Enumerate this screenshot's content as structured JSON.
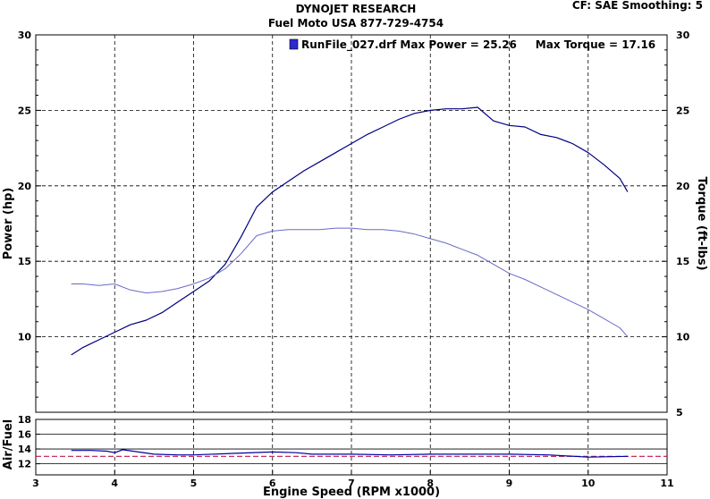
{
  "header": {
    "title_line1": "DYNOJET RESEARCH",
    "title_line2": "Fuel Moto USA 877-729-4754",
    "settings": "CF: SAE  Smoothing: 5"
  },
  "legend": {
    "entry": "RunFile_027.drf Max Power = 25.26     Max Torque = 17.16",
    "swatch_color": "#2b2bd0"
  },
  "chart_data": [
    {
      "type": "line",
      "title": "",
      "xlabel": "Engine Speed (RPM x1000)",
      "ylabel": "Power (hp)",
      "y2label": "Torque (ft-lbs)",
      "xlim": [
        3,
        11
      ],
      "ylim": [
        5,
        30
      ],
      "y2lim": [
        5,
        30
      ],
      "x_ticks": [
        "3",
        "4",
        "5",
        "6",
        "7",
        "8",
        "9",
        "10",
        "11"
      ],
      "y_ticks": [
        "10",
        "15",
        "20",
        "25",
        "30"
      ],
      "y2_ticks": [
        "5",
        "10",
        "15",
        "20",
        "25",
        "30"
      ],
      "grid": true,
      "legend_position": "top-right",
      "series": [
        {
          "name": "Power",
          "color": "#000080",
          "x": [
            3.45,
            3.6,
            3.8,
            4.0,
            4.2,
            4.4,
            4.6,
            4.8,
            5.0,
            5.2,
            5.4,
            5.6,
            5.8,
            6.0,
            6.2,
            6.4,
            6.6,
            6.8,
            7.0,
            7.2,
            7.4,
            7.6,
            7.8,
            8.0,
            8.2,
            8.4,
            8.6,
            8.8,
            9.0,
            9.2,
            9.4,
            9.6,
            9.8,
            10.0,
            10.2,
            10.4,
            10.5
          ],
          "values": [
            8.8,
            9.3,
            9.8,
            10.3,
            10.8,
            11.1,
            11.6,
            12.3,
            13.0,
            13.7,
            14.8,
            16.6,
            18.6,
            19.6,
            20.3,
            21.0,
            21.6,
            22.2,
            22.8,
            23.4,
            23.9,
            24.4,
            24.8,
            25.0,
            25.1,
            25.1,
            25.2,
            24.3,
            24.0,
            23.9,
            23.4,
            23.2,
            22.8,
            22.2,
            21.4,
            20.5,
            19.6
          ]
        },
        {
          "name": "Torque",
          "color": "#6a6ac8",
          "x": [
            3.45,
            3.6,
            3.8,
            4.0,
            4.2,
            4.4,
            4.6,
            4.8,
            5.0,
            5.2,
            5.4,
            5.6,
            5.8,
            6.0,
            6.2,
            6.4,
            6.6,
            6.8,
            7.0,
            7.2,
            7.4,
            7.6,
            7.8,
            8.0,
            8.2,
            8.4,
            8.6,
            8.8,
            9.0,
            9.2,
            9.4,
            9.6,
            9.8,
            10.0,
            10.2,
            10.4,
            10.5
          ],
          "values": [
            13.5,
            13.5,
            13.4,
            13.5,
            13.1,
            12.9,
            13.0,
            13.2,
            13.5,
            13.9,
            14.5,
            15.5,
            16.7,
            17.0,
            17.1,
            17.1,
            17.1,
            17.2,
            17.2,
            17.1,
            17.1,
            17.0,
            16.8,
            16.5,
            16.2,
            15.8,
            15.4,
            14.8,
            14.2,
            13.8,
            13.3,
            12.8,
            12.3,
            11.8,
            11.2,
            10.6,
            10.0
          ]
        }
      ]
    },
    {
      "type": "line",
      "title": "",
      "xlabel": "",
      "ylabel": "Air/Fuel",
      "xlim": [
        3,
        11
      ],
      "ylim": [
        10.5,
        18
      ],
      "y_ticks": [
        "12",
        "14",
        "16",
        "18"
      ],
      "grid": true,
      "reference_line": {
        "value": 13.0,
        "color": "#c0184a"
      },
      "series": [
        {
          "name": "Air/Fuel",
          "color": "#0000a0",
          "x": [
            3.45,
            3.7,
            3.9,
            4.0,
            4.1,
            4.3,
            4.5,
            4.8,
            5.0,
            5.5,
            6.0,
            6.3,
            6.5,
            7.0,
            7.5,
            8.0,
            8.5,
            9.0,
            9.5,
            10.0,
            10.5
          ],
          "values": [
            13.8,
            13.8,
            13.7,
            13.5,
            13.9,
            13.6,
            13.3,
            13.2,
            13.2,
            13.4,
            13.6,
            13.5,
            13.3,
            13.3,
            13.2,
            13.3,
            13.3,
            13.3,
            13.2,
            12.9,
            13.0
          ]
        }
      ]
    }
  ]
}
